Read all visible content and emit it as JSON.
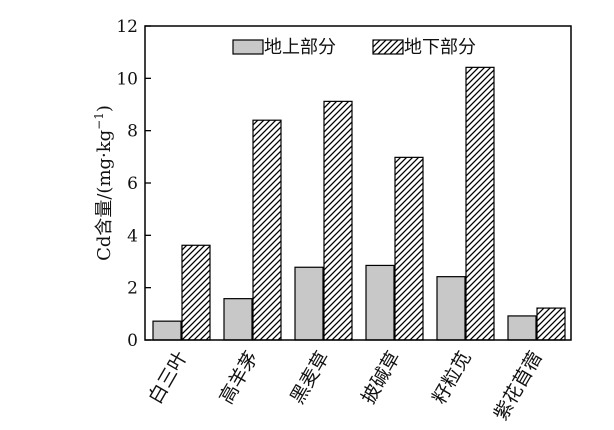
{
  "chart_data": {
    "type": "bar",
    "title": "",
    "xlabel": "",
    "ylabel": "Cd含量/(mg·kg",
    "ylabel_sup": "−1",
    "ylabel_close": ")",
    "ylim": [
      0,
      12
    ],
    "yticks": [
      0,
      2,
      4,
      6,
      8,
      10,
      12
    ],
    "grid": false,
    "legend_position": "top-right",
    "categories": [
      "白三叶",
      "高羊茅",
      "黑麦草",
      "披碱草",
      "籽粒苋",
      "紫花苜蓿"
    ],
    "series": [
      {
        "name": "地上部分",
        "fill": "solid-gray",
        "color": "#c8c8c8",
        "values": [
          0.72,
          1.58,
          2.78,
          2.85,
          2.42,
          0.92
        ]
      },
      {
        "name": "地下部分",
        "fill": "diagonal-hatch",
        "color": "#000000",
        "values": [
          3.62,
          8.4,
          9.12,
          6.98,
          10.42,
          1.22
        ]
      }
    ]
  }
}
